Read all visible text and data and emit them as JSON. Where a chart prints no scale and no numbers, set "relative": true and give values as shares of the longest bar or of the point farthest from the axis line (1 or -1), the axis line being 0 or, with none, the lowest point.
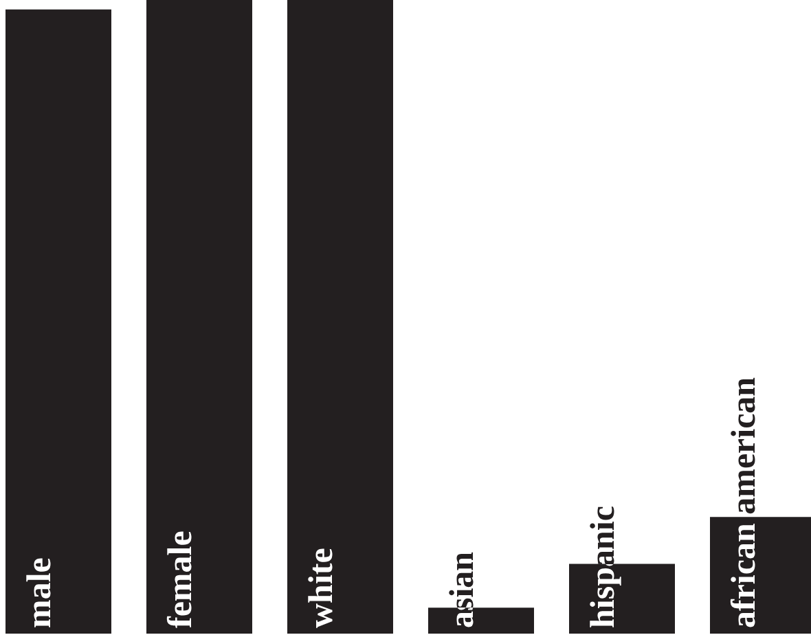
{
  "chart_data": {
    "type": "bar",
    "relative": true,
    "categories": [
      "male",
      "female",
      "white",
      "asian",
      "hispanic",
      "african american"
    ],
    "values": [
      0.985,
      1,
      1,
      0.041,
      0.11,
      0.184
    ],
    "color": "#231f20",
    "grid": false,
    "legend": false
  }
}
